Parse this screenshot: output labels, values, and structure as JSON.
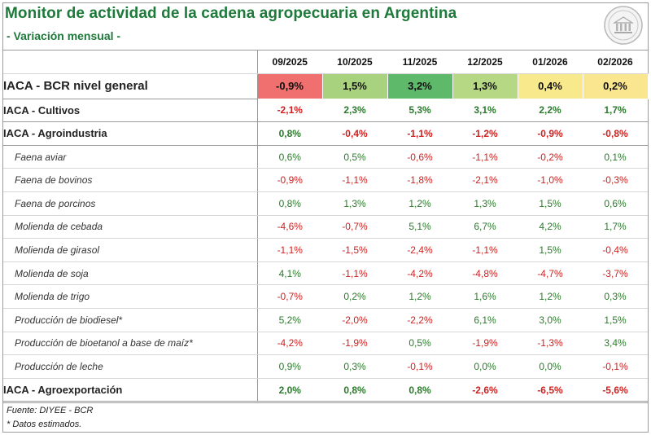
{
  "title": "Monitor de actividad de la cadena agropecuaria en Argentina",
  "subtitle": "- Variación mensual -",
  "logo": {
    "icon": "institution-seal-icon"
  },
  "columns": [
    "09/2025",
    "10/2025",
    "11/2025",
    "12/2025",
    "01/2026",
    "02/2026"
  ],
  "general_row": {
    "label": "IACA - BCR nivel general",
    "values": [
      "-0,9%",
      "1,5%",
      "3,2%",
      "1,3%",
      "0,4%",
      "0,2%"
    ],
    "colors": [
      "#f07070",
      "#a9d27f",
      "#5fb96a",
      "#b6d884",
      "#f7e98c",
      "#fbe690"
    ]
  },
  "rows": [
    {
      "label": "IACA - Cultivos",
      "kind": "main",
      "values": [
        "-2,1%",
        "2,3%",
        "5,3%",
        "3,1%",
        "2,2%",
        "1,7%"
      ]
    },
    {
      "label": "IACA - Agroindustria",
      "kind": "main",
      "values": [
        "0,8%",
        "-0,4%",
        "-1,1%",
        "-1,2%",
        "-0,9%",
        "-0,8%"
      ]
    },
    {
      "label": "Faena aviar",
      "kind": "sub",
      "values": [
        "0,6%",
        "0,5%",
        "-0,6%",
        "-1,1%",
        "-0,2%",
        "0,1%"
      ]
    },
    {
      "label": "Faena de bovinos",
      "kind": "sub",
      "values": [
        "-0,9%",
        "-1,1%",
        "-1,8%",
        "-2,1%",
        "-1,0%",
        "-0,3%"
      ]
    },
    {
      "label": "Faena de porcinos",
      "kind": "sub",
      "values": [
        "0,8%",
        "1,3%",
        "1,2%",
        "1,3%",
        "1,5%",
        "0,6%"
      ]
    },
    {
      "label": "Molienda de cebada",
      "kind": "sub",
      "values": [
        "-4,6%",
        "-0,7%",
        "5,1%",
        "6,7%",
        "4,2%",
        "1,7%"
      ]
    },
    {
      "label": "Molienda de girasol",
      "kind": "sub",
      "values": [
        "-1,1%",
        "-1,5%",
        "-2,4%",
        "-1,1%",
        "1,5%",
        "-0,4%"
      ]
    },
    {
      "label": "Molienda de soja",
      "kind": "sub",
      "values": [
        "4,1%",
        "-1,1%",
        "-4,2%",
        "-4,8%",
        "-4,7%",
        "-3,7%"
      ]
    },
    {
      "label": "Molienda de trigo",
      "kind": "sub",
      "values": [
        "-0,7%",
        "0,2%",
        "1,2%",
        "1,6%",
        "1,2%",
        "0,3%"
      ]
    },
    {
      "label": "Producción de biodiesel*",
      "kind": "sub",
      "values": [
        "5,2%",
        "-2,0%",
        "-2,2%",
        "6,1%",
        "3,0%",
        "1,5%"
      ]
    },
    {
      "label": "Producción de bioetanol a base de maíz*",
      "kind": "sub",
      "values": [
        "-4,2%",
        "-1,9%",
        "0,5%",
        "-1,9%",
        "-1,3%",
        "3,4%"
      ]
    },
    {
      "label": "Producción de leche",
      "kind": "sub",
      "values": [
        "0,9%",
        "0,3%",
        "-0,1%",
        "0,0%",
        "0,0%",
        "-0,1%"
      ]
    },
    {
      "label": "IACA - Agroexportación",
      "kind": "main",
      "values": [
        "2,0%",
        "0,8%",
        "0,8%",
        "-2,6%",
        "-6,5%",
        "-5,6%"
      ]
    }
  ],
  "footnotes": {
    "source": "Fuente: DIYEE - BCR",
    "estimated": "* Datos estimados."
  },
  "value_colors": {
    "positive": "#2b7a2b",
    "negative": "#d11f1f"
  }
}
